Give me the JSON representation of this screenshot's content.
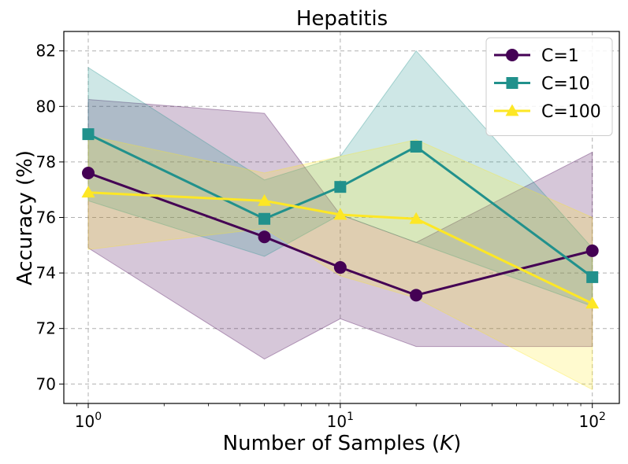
{
  "chart_data": {
    "type": "line",
    "title": "Hepatitis",
    "xlabel": "Number of Samples (K)",
    "xlabel_parts": {
      "prefix": "Number of Samples (",
      "italic": "K",
      "suffix": ")"
    },
    "ylabel": "Accuracy (%)",
    "xscale": "log",
    "xlim": [
      0.8,
      128
    ],
    "ylim": [
      69.3,
      82.7
    ],
    "x": [
      1,
      5,
      10,
      20,
      100
    ],
    "x_tick_labels": [
      {
        "value": 1,
        "base": "10",
        "exp": "0"
      },
      {
        "value": 10,
        "base": "10",
        "exp": "1"
      },
      {
        "value": 100,
        "base": "10",
        "exp": "2"
      }
    ],
    "y_ticks": [
      70,
      72,
      74,
      76,
      78,
      80,
      82
    ],
    "grid": true,
    "legend_position": "top-right",
    "series": [
      {
        "name": "C=1",
        "color": "#440154",
        "marker": "circle",
        "values": [
          77.6,
          75.3,
          74.2,
          73.2,
          74.8
        ],
        "lower": [
          74.9,
          70.9,
          72.35,
          71.35,
          71.35
        ],
        "upper": [
          80.25,
          79.75,
          76.1,
          75.1,
          78.35
        ]
      },
      {
        "name": "C=10",
        "color": "#21918c",
        "marker": "square",
        "values": [
          79.0,
          75.95,
          77.1,
          78.55,
          73.85
        ],
        "lower": [
          76.6,
          74.6,
          76.1,
          75.1,
          72.8
        ],
        "upper": [
          81.4,
          77.35,
          78.2,
          82.0,
          74.9
        ]
      },
      {
        "name": "C=100",
        "color": "#fde725",
        "marker": "triangle",
        "values": [
          76.9,
          76.6,
          76.1,
          75.95,
          72.9
        ],
        "lower": [
          74.85,
          75.6,
          73.9,
          73.1,
          69.8
        ],
        "upper": [
          78.95,
          77.6,
          78.2,
          78.8,
          76.0
        ]
      }
    ]
  }
}
